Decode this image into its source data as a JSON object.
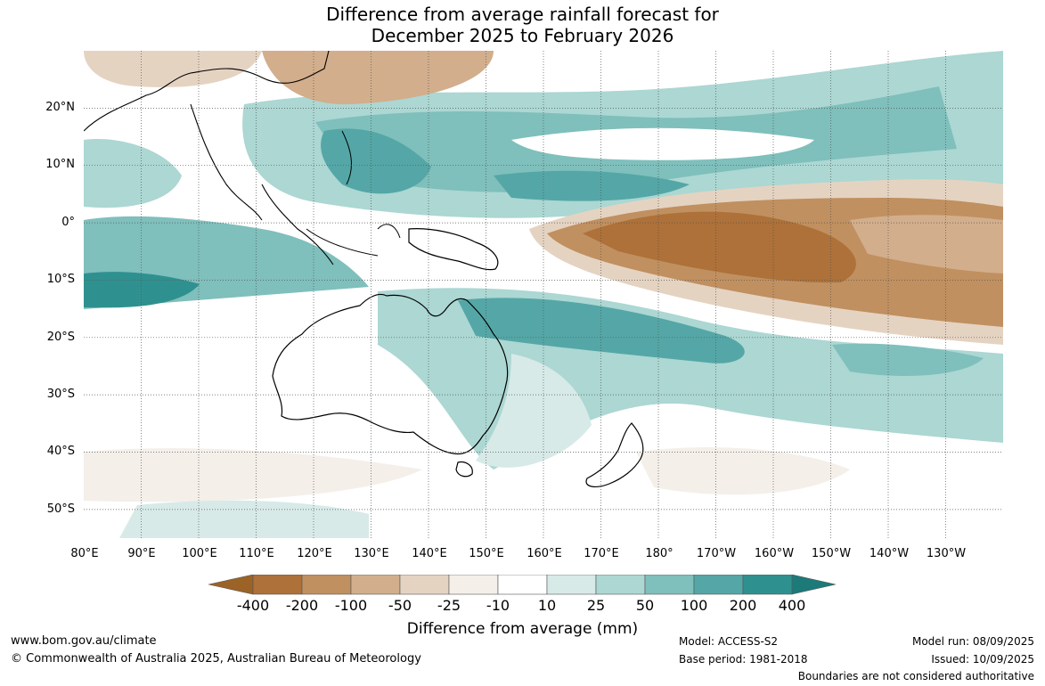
{
  "title": {
    "line1": "Difference from average rainfall forecast for",
    "line2": "December 2025 to February 2026"
  },
  "axes": {
    "lat_labels": [
      "20°N",
      "10°N",
      "0°",
      "10°S",
      "20°S",
      "30°S",
      "40°S",
      "50°S"
    ],
    "lon_labels": [
      "80°E",
      "90°E",
      "100°E",
      "110°E",
      "120°E",
      "130°E",
      "140°E",
      "150°E",
      "160°E",
      "170°E",
      "180°",
      "170°W",
      "160°W",
      "150°W",
      "140°W",
      "130°W"
    ]
  },
  "legend": {
    "title": "Difference from average (mm)",
    "tick_labels": [
      "-400",
      "-200",
      "-100",
      "-50",
      "-25",
      "-10",
      "10",
      "25",
      "50",
      "100",
      "200",
      "400"
    ],
    "colors": [
      "#9c6326",
      "#ad7139",
      "#c09060",
      "#d2ae8c",
      "#e5d3c2",
      "#f4efe9",
      "#ffffff",
      "#d7eae8",
      "#acd7d3",
      "#7fbfbc",
      "#54a7a6",
      "#2f918f",
      "#1c7a78"
    ]
  },
  "footer": {
    "website": "www.bom.gov.au/climate",
    "copyright": "© Commonwealth of Australia 2025, Australian Bureau of Meteorology",
    "model": "Model: ACCESS-S2",
    "base_period": "Base period: 1981-2018",
    "model_run": "Model run: 08/09/2025",
    "issued": "Issued: 10/09/2025",
    "disclaimer": "Boundaries are not considered authoritative"
  }
}
